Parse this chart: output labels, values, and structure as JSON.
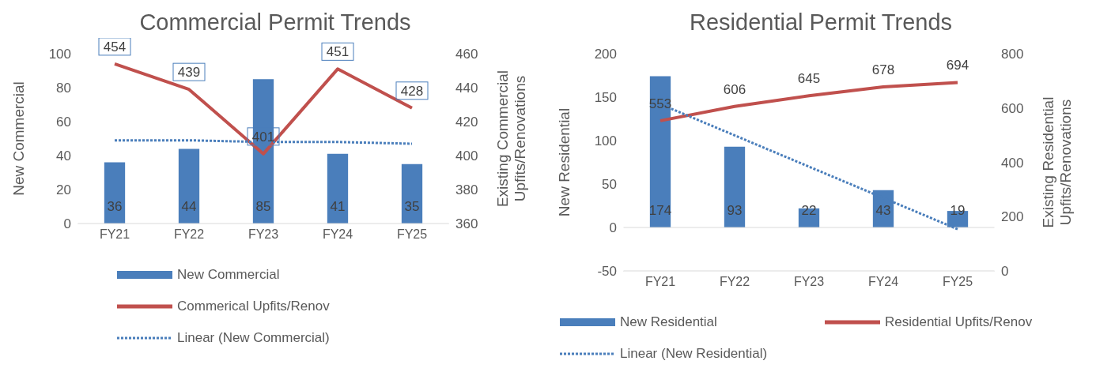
{
  "chart_data": [
    {
      "type": "bar",
      "title": "Commercial Permit Trends",
      "categories": [
        "FY21",
        "FY22",
        "FY23",
        "FY24",
        "FY25"
      ],
      "ylabel": "New Commercial",
      "y2label": "Existing Commercial\nUpfits/Renovations",
      "ylim": [
        0,
        100
      ],
      "yticks": [
        0,
        20,
        40,
        60,
        80,
        100
      ],
      "y2lim": [
        360,
        460
      ],
      "y2ticks": [
        360,
        380,
        400,
        420,
        440,
        460
      ],
      "legend": "bottom",
      "marker": "none",
      "series": [
        {
          "name": "New Commercial",
          "color": "#4a7ebb",
          "values": [
            36,
            44,
            85,
            41,
            35
          ],
          "value_labels": [
            "36",
            "44",
            "85",
            "41",
            "35"
          ]
        },
        {
          "name": "Commerical Upfits/Renov",
          "type": "line",
          "axis": "y2",
          "color": "#c0504d",
          "values": [
            454,
            439,
            401,
            451,
            428
          ],
          "value_labels": [
            "454",
            "439",
            "401",
            "451",
            "428"
          ]
        },
        {
          "name": "Linear (New Commercial)",
          "type": "line",
          "line_style": "dotted",
          "color": "#4a7ebb",
          "values": [
            49,
            49,
            48,
            48,
            47
          ]
        }
      ]
    },
    {
      "type": "bar",
      "title": "Residential Permit Trends",
      "categories": [
        "FY21",
        "FY22",
        "FY23",
        "FY24",
        "FY25"
      ],
      "ylabel": "New Residential",
      "y2label": "Existing Residential\nUpfits/Renovations",
      "ylim": [
        -50,
        200
      ],
      "yticks": [
        -50,
        0,
        50,
        100,
        150,
        200
      ],
      "y2lim": [
        0,
        800
      ],
      "y2ticks": [
        0,
        200,
        400,
        600,
        800
      ],
      "legend": "bottom",
      "marker": "none",
      "series": [
        {
          "name": "New Residential",
          "color": "#4a7ebb",
          "values": [
            174,
            93,
            22,
            43,
            19
          ],
          "value_labels": [
            "174",
            "93",
            "22",
            "43",
            "19"
          ]
        },
        {
          "name": "Residential Upfits/Renov",
          "type": "line",
          "axis": "y2",
          "color": "#c0504d",
          "values": [
            553,
            606,
            645,
            678,
            694
          ],
          "value_labels": [
            "553",
            "606",
            "645",
            "678",
            "694"
          ]
        },
        {
          "name": "Linear (New Residential)",
          "type": "line",
          "line_style": "dotted",
          "color": "#4a7ebb",
          "values": [
            142,
            106,
            70,
            34,
            -2
          ]
        }
      ]
    }
  ]
}
